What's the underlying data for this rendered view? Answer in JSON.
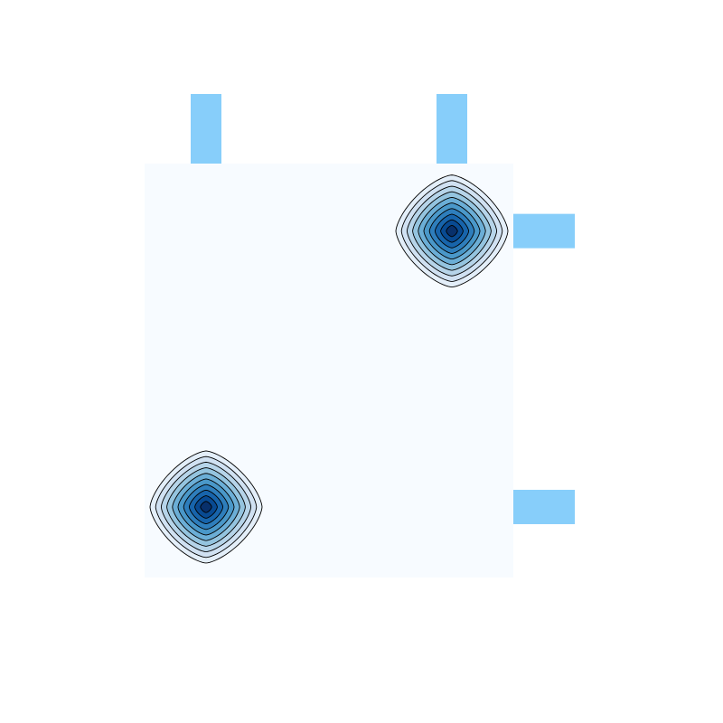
{
  "chart_data": {
    "type": "heatmap",
    "subtype": "2d-density-contour-with-marginal-bars",
    "title": "",
    "xlabel": "",
    "ylabel": "",
    "axes_visible": false,
    "grid": false,
    "colormap": "Blues",
    "colors": {
      "background": "#f7fbff",
      "peak": "#08306b",
      "contour_line": "#000000",
      "marginal_bar": "#87cefa"
    },
    "contour_levels": 10,
    "xlim": [
      0,
      6
    ],
    "ylim": [
      0,
      6.75
    ],
    "peaks": [
      {
        "x": 1,
        "y": 1.15,
        "amplitude": 1
      },
      {
        "x": 5,
        "y": 5.65,
        "amplitude": 1
      }
    ],
    "marginal_x": {
      "position": "top",
      "bins": [
        {
          "x": 1,
          "value": 1
        },
        {
          "x": 5,
          "value": 1
        }
      ]
    },
    "marginal_y": {
      "position": "right",
      "bins": [
        {
          "y": 1.15,
          "value": 1
        },
        {
          "y": 5.65,
          "value": 1
        }
      ]
    }
  }
}
